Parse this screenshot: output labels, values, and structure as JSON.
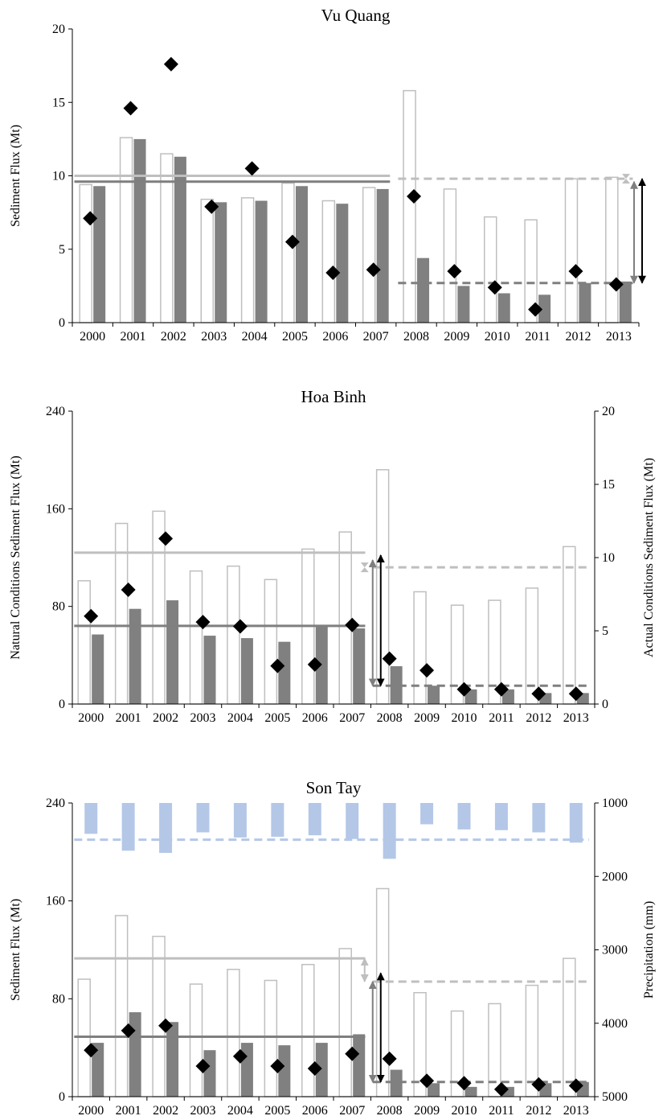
{
  "colors": {
    "natural_bar": "#bfbfbf",
    "actual_bar": "#808080",
    "precip_bar": "#b4c7e7",
    "mean_natural": "#bfbfbf",
    "mean_actual": "#7f7f7f",
    "marker": "#000000"
  },
  "chart_data": [
    {
      "type": "bar",
      "title": "Vu Quang",
      "ylabel": "Sediment Flux (Mt)",
      "ylim": [
        0,
        20
      ],
      "yticks": [
        0,
        5,
        10,
        15,
        20
      ],
      "categories": [
        "2000",
        "2001",
        "2002",
        "2003",
        "2004",
        "2005",
        "2006",
        "2007",
        "2008",
        "2009",
        "2010",
        "2011",
        "2012",
        "2013"
      ],
      "series": [
        {
          "kind": "open-bar",
          "values": [
            9.4,
            12.6,
            11.5,
            8.4,
            8.5,
            9.5,
            8.3,
            9.2,
            15.8,
            9.1,
            7.2,
            7.0,
            9.8,
            9.9
          ]
        },
        {
          "kind": "filled-bar",
          "values": [
            9.3,
            12.5,
            11.3,
            8.2,
            8.3,
            9.3,
            8.1,
            9.1,
            4.4,
            2.5,
            2.0,
            1.9,
            2.7,
            2.8
          ]
        },
        {
          "kind": "diamond",
          "values": [
            7.1,
            14.6,
            17.6,
            7.9,
            10.5,
            5.5,
            3.4,
            3.6,
            8.6,
            3.5,
            2.4,
            0.9,
            3.5,
            2.6
          ]
        }
      ],
      "mean_lines": [
        {
          "style": "solid",
          "color": "natural",
          "value": 10.0,
          "from": "2000",
          "to": "2007"
        },
        {
          "style": "solid",
          "color": "actual",
          "value": 9.6,
          "from": "2000",
          "to": "2007"
        },
        {
          "style": "dashed",
          "color": "natural",
          "value": 9.8,
          "from": "2008",
          "to": "2013"
        },
        {
          "style": "dashed",
          "color": "actual",
          "value": 2.7,
          "from": "2008",
          "to": "2013"
        }
      ],
      "arrows": [
        {
          "color": "natural",
          "from": 9.8,
          "to": 9.8
        },
        {
          "color": "actual",
          "from": 9.6,
          "to": 2.7
        },
        {
          "color": "marker",
          "from": 9.8,
          "to": 2.7
        }
      ]
    },
    {
      "type": "bar",
      "title": "Hoa Binh",
      "ylabel": "Natural Conditions Sediment Flux (Mt)",
      "y2label": "Actual Conditions Sediment Flux (Mt)",
      "ylim": [
        0,
        240
      ],
      "yticks": [
        0,
        80,
        160,
        240
      ],
      "y2lim": [
        0,
        20
      ],
      "y2ticks": [
        0,
        5,
        10,
        15,
        20
      ],
      "categories": [
        "2000",
        "2001",
        "2002",
        "2003",
        "2004",
        "2005",
        "2006",
        "2007",
        "2008",
        "2009",
        "2010",
        "2011",
        "2012",
        "2013"
      ],
      "series": [
        {
          "kind": "open-bar",
          "axis": "left",
          "values": [
            101,
            148,
            158,
            109,
            113,
            102,
            127,
            141,
            192,
            92,
            81,
            85,
            95,
            129
          ]
        },
        {
          "kind": "filled-bar",
          "axis": "left",
          "values": [
            57,
            78,
            85,
            56,
            54,
            51,
            64,
            62,
            31,
            15,
            12,
            12,
            9,
            9
          ]
        },
        {
          "kind": "diamond",
          "axis": "right",
          "values": [
            6.0,
            7.8,
            11.3,
            5.6,
            5.3,
            2.6,
            2.7,
            5.4,
            3.1,
            2.3,
            1.0,
            1.0,
            0.7,
            0.7
          ]
        }
      ],
      "mean_lines": [
        {
          "style": "solid",
          "color": "natural",
          "value": 124,
          "from": "2000",
          "to": "2007"
        },
        {
          "style": "solid",
          "color": "actual",
          "value": 64,
          "from": "2000",
          "to": "2007"
        },
        {
          "style": "dashed",
          "color": "natural",
          "value": 112,
          "from": "2008",
          "to": "2013"
        },
        {
          "style": "dashed",
          "color": "actual",
          "value": 15,
          "from": "2008",
          "to": "2013"
        }
      ],
      "arrows": [
        {
          "color": "natural",
          "from": 112,
          "to": 112
        },
        {
          "color": "actual",
          "from": 118,
          "to": 15
        },
        {
          "color": "marker",
          "from": 122,
          "to": 15
        }
      ]
    },
    {
      "type": "bar",
      "title": "Son Tay",
      "ylabel": "Sediment Flux (Mt)",
      "y2label": "Precipitation (mm)",
      "ylim": [
        0,
        240
      ],
      "yticks": [
        0,
        80,
        160,
        240
      ],
      "y2lim": [
        1000,
        5000
      ],
      "y2ticks": [
        1000,
        2000,
        3000,
        4000,
        5000
      ],
      "y2_inverted": true,
      "categories": [
        "2000",
        "2001",
        "2002",
        "2003",
        "2004",
        "2005",
        "2006",
        "2007",
        "2008",
        "2009",
        "2010",
        "2011",
        "2012",
        "2013"
      ],
      "series": [
        {
          "kind": "open-bar",
          "axis": "left",
          "values": [
            96,
            148,
            131,
            92,
            104,
            95,
            108,
            121,
            170,
            85,
            70,
            76,
            91,
            113
          ]
        },
        {
          "kind": "filled-bar",
          "axis": "left",
          "values": [
            44,
            69,
            61,
            38,
            44,
            42,
            44,
            51,
            22,
            11,
            8,
            8,
            11,
            12
          ]
        },
        {
          "kind": "diamond",
          "axis": "left",
          "values": [
            38,
            54,
            58,
            25,
            33,
            25,
            23,
            35,
            31,
            13,
            11,
            6,
            10,
            9
          ]
        },
        {
          "kind": "precip-bar",
          "axis": "right",
          "values": [
            1420,
            1650,
            1680,
            1400,
            1470,
            1460,
            1440,
            1490,
            1760,
            1290,
            1360,
            1370,
            1400,
            1540
          ]
        }
      ],
      "mean_lines": [
        {
          "style": "solid",
          "color": "natural",
          "value": 113,
          "from": "2000",
          "to": "2007"
        },
        {
          "style": "solid",
          "color": "actual",
          "value": 49,
          "from": "2000",
          "to": "2007"
        },
        {
          "style": "dashed",
          "color": "natural",
          "value": 94,
          "from": "2008",
          "to": "2013"
        },
        {
          "style": "dashed",
          "color": "actual",
          "value": 12,
          "from": "2008",
          "to": "2013"
        },
        {
          "style": "dashed",
          "color": "precip",
          "axis": "right",
          "value": 1500,
          "from": "2000",
          "to": "2013"
        }
      ],
      "arrows": [
        {
          "color": "natural",
          "from": 113,
          "to": 94
        },
        {
          "color": "actual",
          "from": 94,
          "to": 12
        },
        {
          "color": "marker",
          "from": 101,
          "to": 12
        }
      ]
    }
  ]
}
